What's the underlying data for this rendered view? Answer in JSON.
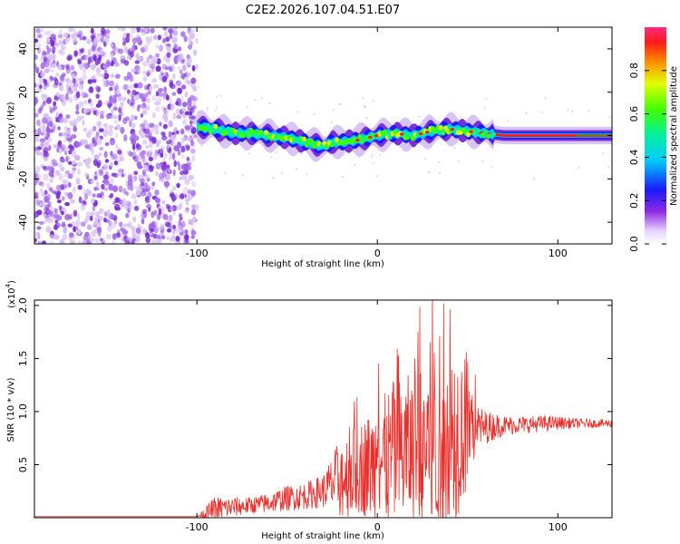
{
  "title": "C2E2.2026.107.04.51.E07",
  "chart_data": [
    {
      "type": "heatmap",
      "name": "spectrogram",
      "xlabel": "Height of straight line (km)",
      "ylabel": "Frequency (Hz)",
      "xlim": [
        -190,
        130
      ],
      "ylim": [
        -50,
        50
      ],
      "xticks": [
        -100,
        0,
        100
      ],
      "yticks": [
        -40,
        -20,
        0,
        20,
        40
      ],
      "noise_region_x": [
        -190,
        -100
      ],
      "ridge": {
        "x": [
          -100,
          -90,
          -80,
          -70,
          -60,
          -50,
          -40,
          -30,
          -25,
          -20,
          -10,
          0,
          10,
          20,
          30,
          40,
          50,
          60,
          70,
          80,
          90,
          100,
          110,
          120,
          130
        ],
        "y": [
          4,
          3,
          1,
          1,
          0,
          -1,
          -3,
          -5,
          -3,
          -3,
          -2,
          0,
          1,
          0,
          2,
          3,
          2,
          1,
          0,
          0,
          0,
          0,
          0,
          0,
          0
        ]
      }
    },
    {
      "type": "line",
      "name": "snr",
      "xlabel": "Height of straight line (km)",
      "ylabel": "SNR (10 * v/v)",
      "multiplier_label": "(x10",
      "multiplier_exp": "4",
      "multiplier_close": ")",
      "xlim": [
        -190,
        130
      ],
      "ylim": [
        0,
        2.05
      ],
      "xticks": [
        -100,
        0,
        100
      ],
      "yticks": [
        0.5,
        1.0,
        1.5,
        2.0
      ],
      "envelope": {
        "x": [
          -190,
          -100,
          -95,
          -90,
          -80,
          -70,
          -60,
          -50,
          -40,
          -30,
          -20,
          -10,
          0,
          10,
          20,
          30,
          40,
          50,
          55,
          60,
          70,
          80,
          90,
          100,
          110,
          120,
          130
        ],
        "base": [
          0.01,
          0.01,
          0.03,
          0.06,
          0.08,
          0.1,
          0.12,
          0.16,
          0.18,
          0.22,
          0.3,
          0.38,
          0.4,
          0.45,
          0.5,
          0.55,
          0.6,
          0.75,
          0.8,
          0.82,
          0.85,
          0.86,
          0.87,
          0.88,
          0.88,
          0.88,
          0.88
        ],
        "amp": [
          0.0,
          0.0,
          0.08,
          0.15,
          0.12,
          0.1,
          0.12,
          0.15,
          0.16,
          0.2,
          0.5,
          0.55,
          0.7,
          0.9,
          0.9,
          1.2,
          1.2,
          0.8,
          0.3,
          0.2,
          0.12,
          0.1,
          0.1,
          0.08,
          0.06,
          0.05,
          0.05
        ]
      }
    }
  ],
  "colorbar": {
    "label": "Normalized spectral amplitude",
    "ticks": [
      "0.0",
      "0.2",
      "0.4",
      "0.6",
      "0.8"
    ],
    "range": [
      0,
      1
    ]
  },
  "colors": {
    "line": "#e8302c",
    "noise_dark": "#7b2fd6",
    "noise_light": "#d9c2f5"
  }
}
